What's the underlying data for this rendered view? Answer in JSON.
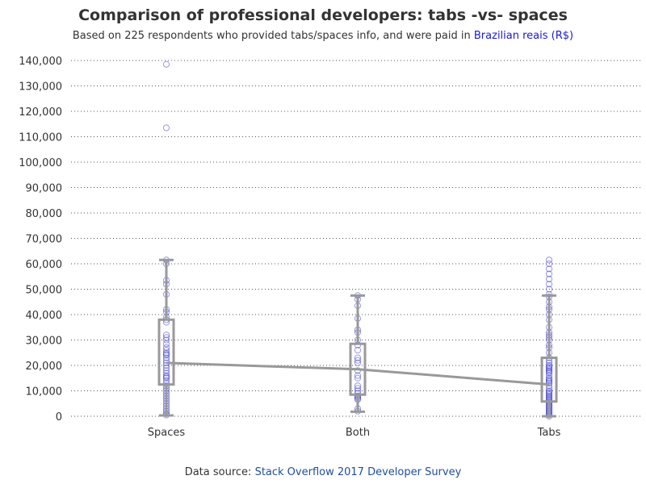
{
  "title": "Comparison of professional developers: tabs -vs- spaces",
  "subtitle_prefix": "Based on 225 respondents who provided tabs/spaces info, and were paid in ",
  "subtitle_highlight": "Brazilian reais (R$)",
  "footer_prefix": "Data source: ",
  "footer_source": "Stack Overflow 2017 Developer Survey",
  "colors": {
    "box": "#999999",
    "point": "#3333cc",
    "text": "#333333",
    "grid": "#555555"
  },
  "chart_data": {
    "type": "boxplot",
    "categories": [
      "Spaces",
      "Both",
      "Tabs"
    ],
    "ylim": [
      0,
      140000
    ],
    "y_ticks": [
      0,
      10000,
      20000,
      30000,
      40000,
      50000,
      60000,
      70000,
      80000,
      90000,
      100000,
      110000,
      120000,
      130000,
      140000
    ],
    "y_tick_labels": [
      "0",
      "10,000",
      "20,000",
      "30,000",
      "40,000",
      "50,000",
      "60,000",
      "70,000",
      "80,000",
      "90,000",
      "100,000",
      "110,000",
      "120,000",
      "130,000",
      "140,000"
    ],
    "grid": "horizontal dotted",
    "medians": [
      21000,
      18500,
      12500
    ],
    "boxes": [
      {
        "category": "Spaces",
        "q1": 12500,
        "median": 21000,
        "q3": 38000,
        "whisker_low": 300,
        "whisker_high": 61500
      },
      {
        "category": "Both",
        "q1": 8500,
        "median": 18500,
        "q3": 28500,
        "whisker_low": 1800,
        "whisker_high": 47500
      },
      {
        "category": "Tabs",
        "q1": 5800,
        "median": 12500,
        "q3": 23000,
        "whisker_low": 0,
        "whisker_high": 47500
      }
    ],
    "points": [
      {
        "category": "Spaces",
        "values": [
          138500,
          113500,
          61500,
          60000,
          53500,
          52000,
          48000,
          42000,
          41000,
          39000,
          38000,
          37000,
          32000,
          31000,
          30000,
          28500,
          27000,
          26000,
          25000,
          24500,
          24000,
          23000,
          22000,
          21000,
          20000,
          19000,
          18000,
          17000,
          16000,
          15500,
          15000,
          14000,
          13000,
          12000,
          11000,
          10000,
          9000,
          8000,
          7000,
          6000,
          5000,
          4000,
          3000,
          2000,
          1000,
          500
        ]
      },
      {
        "category": "Both",
        "values": [
          47500,
          46000,
          43500,
          38500,
          34000,
          33000,
          30000,
          28000,
          26000,
          23000,
          22000,
          21000,
          18000,
          16000,
          15000,
          12000,
          11000,
          10000,
          9000,
          8000,
          7500,
          7000,
          6500,
          3000,
          2000
        ]
      },
      {
        "category": "Tabs",
        "values": [
          61500,
          60000,
          58000,
          56000,
          54000,
          52000,
          50000,
          48000,
          47000,
          45000,
          43000,
          42000,
          40000,
          38000,
          35000,
          33000,
          32000,
          31000,
          30000,
          28000,
          27000,
          25000,
          23000,
          22000,
          21000,
          20000,
          19500,
          19000,
          18500,
          18000,
          17500,
          17000,
          16000,
          15000,
          14500,
          14000,
          13500,
          13000,
          12000,
          11000,
          10000,
          9500,
          9000,
          8500,
          8000,
          7500,
          7000,
          6500,
          6000,
          5500,
          5000,
          4500,
          4000,
          3500,
          3000,
          2500,
          2000,
          1500,
          1000,
          500,
          0
        ]
      }
    ]
  }
}
